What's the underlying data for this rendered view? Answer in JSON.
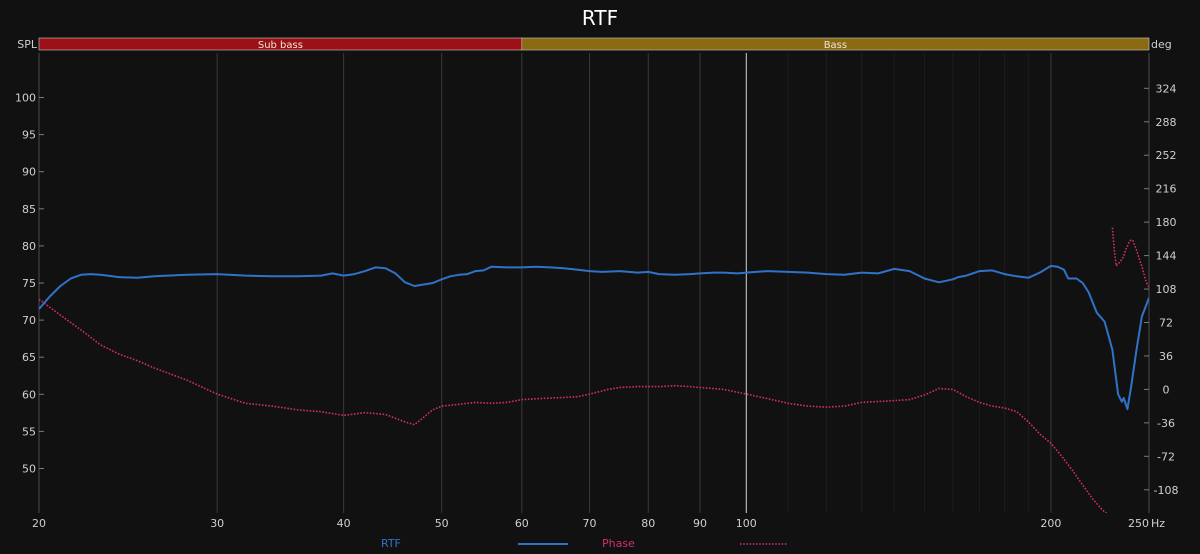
{
  "chart_data": {
    "type": "line",
    "title": "RTF",
    "y_axis_label": "SPL",
    "y2_axis_label": "deg",
    "x_unit": "Hz",
    "x_scale": "log",
    "xlim": [
      20,
      250
    ],
    "ylim": [
      44,
      106
    ],
    "y2lim": [
      -133,
      362
    ],
    "x_ticks": [
      {
        "value": 20,
        "label": "20",
        "major": true
      },
      {
        "value": 30,
        "label": "30",
        "major": true
      },
      {
        "value": 40,
        "label": "40",
        "major": true
      },
      {
        "value": 50,
        "label": "50",
        "major": true
      },
      {
        "value": 60,
        "label": "60",
        "major": true
      },
      {
        "value": 70,
        "label": "70",
        "major": true
      },
      {
        "value": 80,
        "label": "80",
        "major": true
      },
      {
        "value": 90,
        "label": "90",
        "major": true
      },
      {
        "value": 100,
        "label": "100",
        "major": true
      },
      {
        "value": 200,
        "label": "200",
        "major": true
      },
      {
        "value": 250,
        "label": "250",
        "major": false
      }
    ],
    "y_ticks": [
      50,
      55,
      60,
      65,
      70,
      75,
      80,
      85,
      90,
      95,
      100
    ],
    "y2_ticks": [
      -108,
      -72,
      -36,
      0,
      36,
      72,
      108,
      144,
      180,
      216,
      252,
      288,
      324
    ],
    "marker_line_x": 100,
    "bands": [
      {
        "label": "Sub bass",
        "from": 20,
        "to": 60,
        "color": "#9b1117"
      },
      {
        "label": "Bass",
        "from": 60,
        "to": 250,
        "color": "#8a6a10"
      }
    ],
    "grid": true,
    "legend_position": "bottom",
    "series": [
      {
        "name": "RTF",
        "axis": "left",
        "color": "#2f73c9",
        "style": "solid",
        "x": [
          20,
          20.5,
          21,
          21.5,
          22,
          22.5,
          23,
          24,
          25,
          26,
          28,
          30,
          32,
          34,
          36,
          38,
          39,
          40,
          41,
          42,
          43,
          44,
          45,
          46,
          47,
          48,
          49,
          50,
          51,
          52,
          53,
          54,
          55,
          56,
          58,
          60,
          62,
          64,
          66,
          68,
          70,
          72,
          75,
          78,
          80,
          82,
          85,
          88,
          90,
          93,
          95,
          98,
          100,
          105,
          110,
          115,
          120,
          125,
          130,
          135,
          140,
          145,
          150,
          155,
          160,
          162,
          165,
          170,
          175,
          180,
          185,
          190,
          195,
          200,
          203,
          206,
          208,
          212,
          215,
          218,
          222,
          226,
          230,
          233,
          235,
          236,
          238,
          240,
          243,
          246,
          250
        ],
        "values": [
          71.5,
          73.2,
          74.6,
          75.6,
          76.1,
          76.2,
          76.1,
          75.8,
          75.7,
          75.9,
          76.1,
          76.2,
          76.0,
          75.9,
          75.9,
          76.0,
          76.3,
          76.0,
          76.2,
          76.6,
          77.1,
          77.0,
          76.3,
          75.1,
          74.6,
          74.8,
          75.0,
          75.5,
          75.9,
          76.1,
          76.2,
          76.6,
          76.7,
          77.2,
          77.1,
          77.1,
          77.2,
          77.1,
          77.0,
          76.8,
          76.6,
          76.5,
          76.6,
          76.4,
          76.5,
          76.2,
          76.1,
          76.2,
          76.3,
          76.4,
          76.4,
          76.3,
          76.4,
          76.6,
          76.5,
          76.4,
          76.2,
          76.1,
          76.4,
          76.3,
          76.9,
          76.6,
          75.6,
          75.1,
          75.5,
          75.8,
          76.0,
          76.6,
          76.7,
          76.2,
          75.9,
          75.7,
          76.4,
          77.3,
          77.2,
          76.8,
          75.6,
          75.6,
          75.0,
          73.7,
          71.0,
          69.8,
          66.0,
          60.0,
          59.0,
          59.5,
          58.0,
          61.0,
          66.0,
          70.5,
          73.0
        ]
      },
      {
        "name": "Phase",
        "axis": "right",
        "color": "#d12d6e",
        "style": "dotted",
        "segments": [
          {
            "x": [
              20,
              21,
              22,
              23,
              24,
              25,
              26,
              28,
              30,
              32,
              34,
              36,
              38,
              40,
              42,
              44,
              46,
              47,
              48,
              49,
              50,
              52,
              54,
              56,
              58,
              60,
              62,
              65,
              68,
              70,
              73,
              75,
              78,
              80,
              82,
              85,
              88,
              90,
              95,
              100,
              105,
              110,
              115,
              120,
              125,
              130,
              135,
              140,
              145,
              150,
              155,
              160,
              165,
              170,
              175,
              180,
              185,
              190,
              195,
              200,
              205,
              210,
              215,
              220,
              225,
              228
            ],
            "values": [
              97,
              80,
              64,
              48,
              38,
              31,
              23,
              10,
              -5,
              -15,
              -18,
              -22,
              -24,
              -28,
              -25,
              -27,
              -35,
              -38,
              -30,
              -22,
              -18,
              -16,
              -14,
              -15,
              -14,
              -11,
              -10,
              -9,
              -8,
              -5,
              0,
              2,
              3,
              3,
              3,
              4,
              3,
              2,
              0,
              -5,
              -10,
              -15,
              -18,
              -19,
              -18,
              -14,
              -13,
              -12,
              -11,
              -6,
              1,
              0,
              -8,
              -14,
              -18,
              -20,
              -24,
              -35,
              -48,
              -58,
              -72,
              -87,
              -103,
              -118,
              -130,
              -135
            ]
          },
          {
            "x": [
              230,
              231,
              232,
              233,
              234,
              235,
              236,
              237,
              238,
              239,
              240,
              241,
              242,
              243,
              244,
              245,
              246,
              247,
              248,
              249,
              250
            ],
            "values": [
              174,
              150,
              133,
              135,
              137,
              140,
              143,
              150,
              154,
              159,
              161,
              160,
              155,
              150,
              144,
              138,
              132,
              125,
              118,
              113,
              110
            ]
          }
        ]
      }
    ]
  }
}
